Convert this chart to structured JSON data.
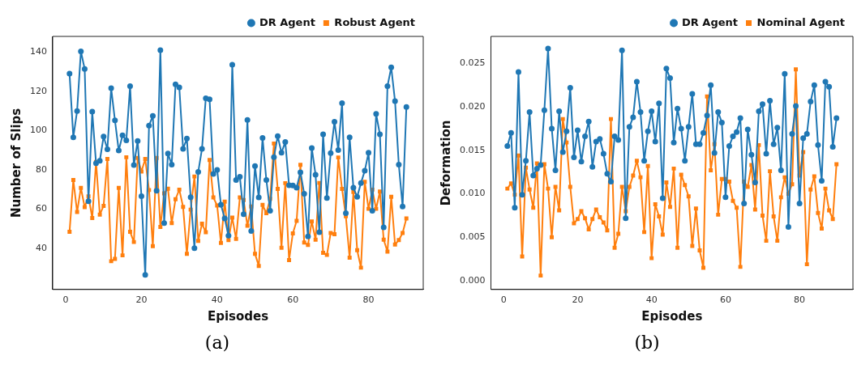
{
  "chart_data": [
    {
      "type": "line",
      "xlabel": "Episodes",
      "ylabel": "Number of Slips",
      "legend": "top right",
      "grid": false,
      "annotations": [
        "(a)"
      ],
      "x": [
        1,
        2,
        3,
        4,
        5,
        6,
        7,
        8,
        9,
        10,
        11,
        12,
        13,
        14,
        15,
        16,
        17,
        18,
        19,
        20,
        21,
        22,
        23,
        24,
        25,
        26,
        27,
        28,
        29,
        30,
        31,
        32,
        33,
        34,
        35,
        36,
        37,
        38,
        39,
        40,
        41,
        42,
        43,
        44,
        45,
        46,
        47,
        48,
        49,
        50,
        51,
        52,
        53,
        54,
        55,
        56,
        57,
        58,
        59,
        60,
        61,
        62,
        63,
        64,
        65,
        66,
        67,
        68,
        69,
        70,
        71,
        72,
        73,
        74,
        75,
        76,
        77,
        78,
        79,
        80,
        81,
        82,
        83,
        84,
        85,
        86,
        87,
        88,
        89,
        90
      ],
      "xlim": [
        -3.45,
        94.45
      ],
      "xticks": [
        0,
        20,
        40,
        60,
        80
      ],
      "ylim": [
        19,
        148
      ],
      "yticks": [
        40,
        60,
        80,
        100,
        120,
        140
      ],
      "series": [
        {
          "name": "DR Agent",
          "color": "#1f77b4",
          "marker": "circle",
          "values": [
            129,
            96.6,
            110,
            140.4,
            131.4,
            64,
            109.6,
            83.4,
            84.6,
            97,
            90.5,
            121.6,
            105.2,
            89.8,
            97.6,
            95,
            122.6,
            82.4,
            94.7,
            66.6,
            26.4,
            102.5,
            107.5,
            69.3,
            141,
            52.8,
            88.3,
            82.6,
            123.6,
            122,
            90.7,
            95.9,
            66,
            40.1,
            78.9,
            90.7,
            116.5,
            115.9,
            77.9,
            80,
            62.2,
            55.2,
            46.4,
            133.6,
            74.8,
            76.4,
            57.4,
            105.4,
            48.8,
            81.9,
            65.9,
            96.2,
            74.8,
            59.1,
            86.4,
            97.2,
            88.7,
            94.2,
            72.1,
            72,
            70.9,
            78.7,
            67.8,
            46,
            91.1,
            77.5,
            48.2,
            98.1,
            65.6,
            88.5,
            104.5,
            90.1,
            114,
            57.9,
            96.6,
            70.9,
            66.2,
            73.3,
            79.5,
            88.7,
            59.1,
            108.5,
            98.1,
            50.7,
            122.6,
            132.2,
            115,
            82.6,
            61.3,
            112
          ]
        },
        {
          "name": "Robust Agent",
          "color": "#ff7f0e",
          "marker": "square",
          "values": [
            48.4,
            74.8,
            58.5,
            70.8,
            61,
            66.5,
            55.4,
            84,
            57.2,
            61.6,
            85.5,
            33.4,
            34.6,
            70.8,
            36.4,
            86.4,
            48.4,
            43.2,
            86,
            79.1,
            85.5,
            69.7,
            41.1,
            86,
            50.9,
            68,
            70.4,
            52.8,
            65,
            69.9,
            61.1,
            37.2,
            59.7,
            76.6,
            43.8,
            52.5,
            48.2,
            85,
            65.9,
            61.8,
            42.7,
            63.8,
            44.2,
            55.6,
            44.8,
            65.9,
            64.6,
            51.5,
            61.3,
            37.2,
            31,
            62.1,
            57.9,
            65.2,
            93.4,
            70.3,
            40.3,
            73.2,
            34,
            47.6,
            54,
            82.5,
            42.9,
            41.7,
            53.7,
            44.4,
            73.3,
            37.7,
            36.6,
            47.8,
            47.2,
            86.3,
            70.3,
            56.3,
            35.2,
            68.7,
            39,
            30.1,
            73.9,
            60.1,
            69.9,
            60.1,
            68.9,
            44.4,
            38.3,
            66.2,
            41.9,
            44.2,
            47.8,
            55.2
          ]
        }
      ]
    },
    {
      "type": "line",
      "xlabel": "Episodes",
      "ylabel": "Deformation",
      "legend": "top right",
      "grid": false,
      "annotations": [
        "(b)"
      ],
      "x": [
        1,
        2,
        3,
        4,
        5,
        6,
        7,
        8,
        9,
        10,
        11,
        12,
        13,
        14,
        15,
        16,
        17,
        18,
        19,
        20,
        21,
        22,
        23,
        24,
        25,
        26,
        27,
        28,
        29,
        30,
        31,
        32,
        33,
        34,
        35,
        36,
        37,
        38,
        39,
        40,
        41,
        42,
        43,
        44,
        45,
        46,
        47,
        48,
        49,
        50,
        51,
        52,
        53,
        54,
        55,
        56,
        57,
        58,
        59,
        60,
        61,
        62,
        63,
        64,
        65,
        66,
        67,
        68,
        69,
        70,
        71,
        72,
        73,
        74,
        75,
        76,
        77,
        78,
        79,
        80,
        81,
        82,
        83,
        84,
        85,
        86,
        87,
        88,
        89,
        90
      ],
      "xlim": [
        -3.45,
        94.45
      ],
      "xticks": [
        0,
        20,
        40,
        60,
        80
      ],
      "ylim": [
        -0.001,
        0.0281
      ],
      "yticks": [
        {
          "value": 0,
          "label": "0.000"
        },
        {
          "value": 0.005,
          "label": "0.005"
        },
        {
          "value": 0.01,
          "label": "0.010"
        },
        {
          "value": 0.015,
          "label": "0.015"
        },
        {
          "value": 0.02,
          "label": "0.020"
        },
        {
          "value": 0.025,
          "label": "0.025"
        }
      ],
      "series": [
        {
          "name": "DR Agent",
          "color": "#1f77b4",
          "marker": "circle",
          "values": [
            0.0155,
            0.017,
            0.0084,
            0.024,
            0.0099,
            0.0138,
            0.0194,
            0.0121,
            0.0129,
            0.0133,
            0.0196,
            0.0267,
            0.0175,
            0.0127,
            0.0195,
            0.0148,
            0.0172,
            0.0222,
            0.0142,
            0.0173,
            0.0137,
            0.0166,
            0.0183,
            0.0131,
            0.016,
            0.0163,
            0.0146,
            0.0123,
            0.0114,
            0.0166,
            0.0162,
            0.0265,
            0.0072,
            0.0177,
            0.0188,
            0.0229,
            0.0194,
            0.0138,
            0.0172,
            0.0195,
            0.016,
            0.0204,
            0.0095,
            0.0244,
            0.0233,
            0.0159,
            0.0198,
            0.0175,
            0.0138,
            0.0177,
            0.0215,
            0.0157,
            0.0157,
            0.017,
            0.019,
            0.0225,
            0.0147,
            0.0194,
            0.0182,
            0.0096,
            0.0155,
            0.0166,
            0.0171,
            0.0187,
            0.0089,
            0.0174,
            0.0145,
            0.0113,
            0.0195,
            0.0203,
            0.0146,
            0.0207,
            0.0157,
            0.0176,
            0.0127,
            0.0238,
            0.0062,
            0.0169,
            0.0201,
            0.0089,
            0.0164,
            0.0169,
            0.0206,
            0.0225,
            0.0156,
            0.0115,
            0.0229,
            0.0223,
            0.0154,
            0.0187
          ]
        },
        {
          "name": "Nominal Agent",
          "color": "#ff7f0e",
          "marker": "square",
          "values": [
            0.0106,
            0.0112,
            0.0099,
            0.0144,
            0.0028,
            0.013,
            0.0105,
            0.0084,
            0.0135,
            0.0006,
            0.0134,
            0.0106,
            0.005,
            0.0108,
            0.0081,
            0.0186,
            0.0159,
            0.0108,
            0.0066,
            0.0071,
            0.008,
            0.0072,
            0.0059,
            0.0071,
            0.0082,
            0.0073,
            0.0067,
            0.0058,
            0.0186,
            0.0038,
            0.0054,
            0.0108,
            0.008,
            0.0108,
            0.0121,
            0.0138,
            0.0119,
            0.0056,
            0.0132,
            0.0026,
            0.0088,
            0.0074,
            0.0053,
            0.0113,
            0.0085,
            0.0129,
            0.0038,
            0.0122,
            0.011,
            0.0097,
            0.004,
            0.0083,
            0.0035,
            0.0015,
            0.0212,
            0.0127,
            0.0157,
            0.0076,
            0.0117,
            0.0117,
            0.0114,
            0.0092,
            0.0084,
            0.0016,
            0.0114,
            0.0108,
            0.0133,
            0.0082,
            0.0156,
            0.0075,
            0.0046,
            0.0126,
            0.0074,
            0.0046,
            0.0096,
            0.0119,
            0.01,
            0.0111,
            0.0243,
            0.0121,
            0.0148,
            0.0019,
            0.0105,
            0.012,
            0.0078,
            0.006,
            0.0106,
            0.0081,
            0.0071,
            0.0134
          ]
        }
      ]
    }
  ]
}
